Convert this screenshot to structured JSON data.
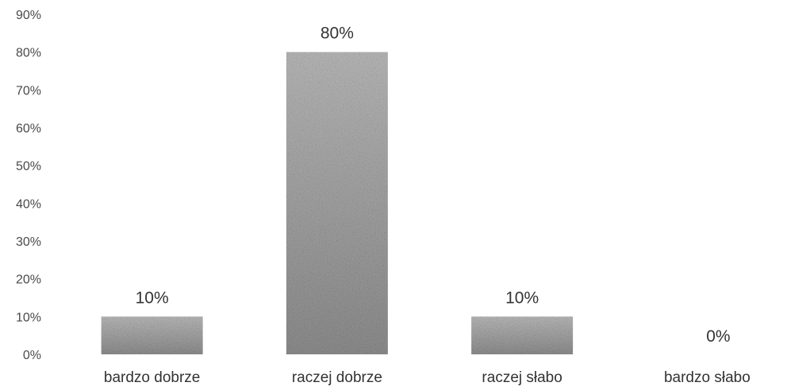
{
  "chart_data": {
    "type": "bar",
    "categories": [
      "bardzo dobrze",
      "raczej dobrze",
      "raczej słabo",
      "bardzo słabo"
    ],
    "values": [
      10,
      80,
      10,
      0
    ],
    "data_labels": [
      "10%",
      "80%",
      "10%",
      "0%"
    ],
    "ylim": [
      0,
      90
    ],
    "y_ticks": [
      0,
      10,
      20,
      30,
      40,
      50,
      60,
      70,
      80,
      90
    ],
    "y_tick_labels": [
      "0%",
      "10%",
      "20%",
      "30%",
      "40%",
      "50%",
      "60%",
      "70%",
      "80%",
      "90%"
    ],
    "grid": false,
    "legend": "none",
    "title": "",
    "xlabel": "",
    "ylabel": "",
    "bar_color": "#9a9a9a"
  }
}
